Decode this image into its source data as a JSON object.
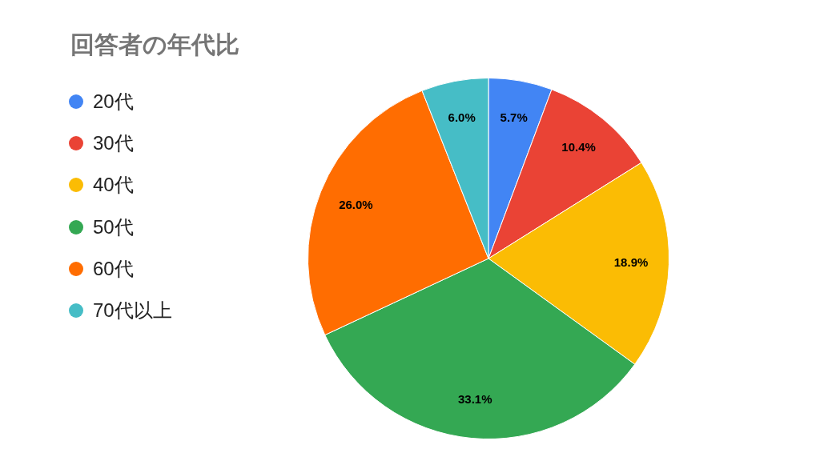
{
  "chart_data": {
    "type": "pie",
    "title": "回答者の年代比",
    "categories": [
      "20代",
      "30代",
      "40代",
      "50代",
      "60代",
      "70代以上"
    ],
    "values": [
      5.7,
      10.4,
      18.9,
      33.1,
      26.0,
      6.0
    ],
    "value_labels": [
      "5.7%",
      "10.4%",
      "18.9%",
      "33.1%",
      "26.0%",
      "6.0%"
    ],
    "colors": [
      "#4285f4",
      "#ea4335",
      "#fbbc04",
      "#34a853",
      "#ff6d01",
      "#46bdc6"
    ],
    "legend": "left"
  }
}
